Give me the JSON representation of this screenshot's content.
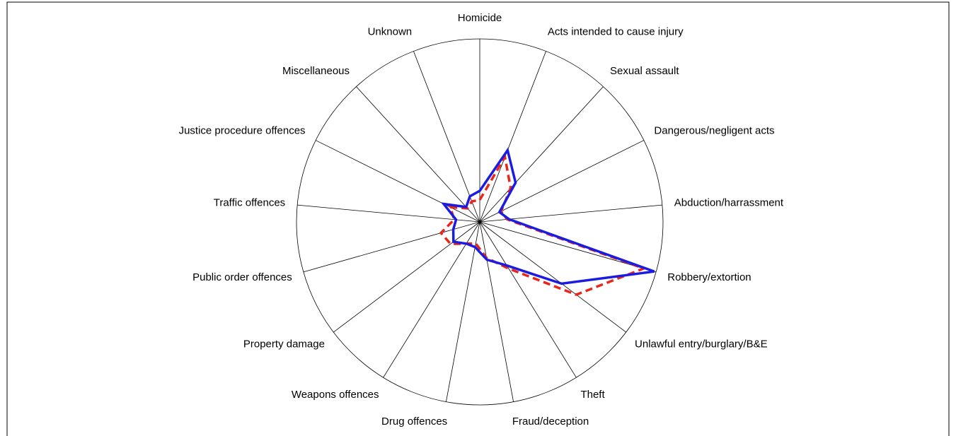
{
  "chart_data": {
    "type": "radar",
    "categories": [
      "Homicide",
      "Acts intended to cause injury",
      "Sexual assault",
      "Dangerous/negligent acts",
      "Abduction/harrassment",
      "Robbery/extortion",
      "Unlawful entry/burglary/B&E",
      "Theft",
      "Fraud/deception",
      "Drug offences",
      "Weapons offences",
      "Property damage",
      "Public order offences",
      "Traffic offences",
      "Justice procedure offences",
      "Miscellaneous",
      "Unknown"
    ],
    "rlim": [
      0,
      1
    ],
    "series": [
      {
        "color": "#e8261e",
        "dash": true,
        "values": [
          0.12,
          0.38,
          0.25,
          0.13,
          0.15,
          0.93,
          0.66,
          0.3,
          0.2,
          0.12,
          0.14,
          0.2,
          0.22,
          0.14,
          0.18,
          0.1,
          0.12
        ]
      },
      {
        "color": "#1c1ce0",
        "dash": false,
        "values": [
          0.17,
          0.42,
          0.29,
          0.12,
          0.16,
          0.99,
          0.56,
          0.28,
          0.21,
          0.14,
          0.14,
          0.18,
          0.15,
          0.13,
          0.22,
          0.11,
          0.15
        ]
      }
    ]
  }
}
